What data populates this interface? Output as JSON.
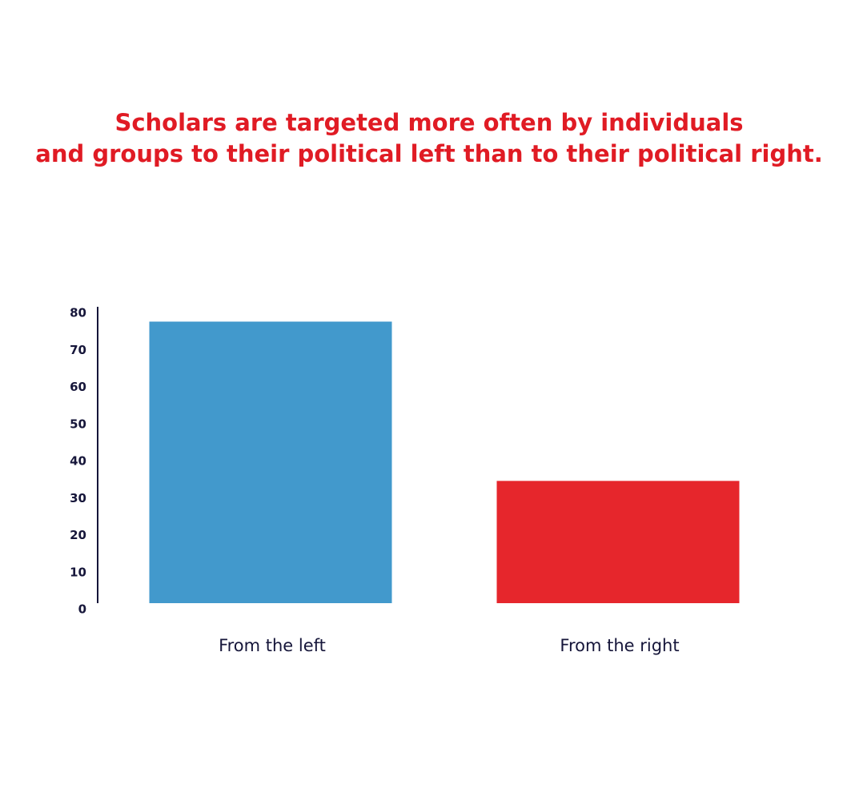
{
  "chart_data": {
    "type": "bar",
    "title": [
      "Scholars are targeted more often by individuals",
      "and groups to their political left than to their political right."
    ],
    "categories": [
      "From the left",
      "From the right"
    ],
    "values": [
      76,
      33
    ],
    "colors": [
      "#4299cc",
      "#e6262c"
    ],
    "ylim": [
      0,
      80
    ],
    "yticks": [
      0,
      10,
      20,
      30,
      40,
      50,
      60,
      70,
      80
    ]
  }
}
